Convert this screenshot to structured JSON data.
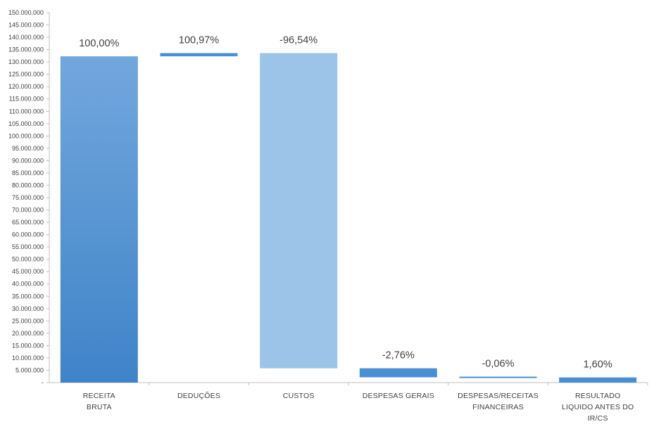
{
  "chart_data": {
    "type": "bar",
    "title": "",
    "xlabel": "",
    "ylabel": "",
    "ylim": [
      0,
      150000000
    ],
    "y_tick_step": 5000000,
    "y_tick_labels": [
      "-",
      "5.000.000",
      "10.000.000",
      "15.000.000",
      "20.000.000",
      "25.000.000",
      "30.000.000",
      "35.000.000",
      "40.000.000",
      "45.000.000",
      "50.000.000",
      "55.000.000",
      "60.000.000",
      "65.000.000",
      "70.000.000",
      "75.000.000",
      "80.000.000",
      "85.000.000",
      "90.000.000",
      "95.000.000",
      "100.000.000",
      "105.000.000",
      "110.000.000",
      "115.000.000",
      "120.000.000",
      "125.000.000",
      "130.000.000",
      "135.000.000",
      "140.000.000",
      "145.000.000",
      "150.000.000"
    ],
    "grid": false,
    "legend": "none",
    "categories": [
      [
        "RECEITA",
        "BRUTA"
      ],
      [
        "DEDUÇÕES"
      ],
      [
        "CUSTOS"
      ],
      [
        "DESPESAS GERAIS"
      ],
      [
        "DESPESAS/RECEITAS",
        "FINANCEIRAS"
      ],
      [
        "RESULTADO",
        "LIQUIDO ANTES DO",
        "IR/CS"
      ]
    ],
    "bars": [
      {
        "start": 0,
        "end": 132300000,
        "label": "100,00%",
        "color": "#5f9fdc"
      },
      {
        "start": 132300000,
        "end": 133600000,
        "label": "100,97%",
        "color": "#4a8fd6"
      },
      {
        "start": 5800000,
        "end": 133600000,
        "label": "-96,54%",
        "color": "#9cc4e9"
      },
      {
        "start": 2150000,
        "end": 5800000,
        "label": "-2,76%",
        "color": "#4a8fd6"
      },
      {
        "start": 2080000,
        "end": 2150000,
        "label": "-0,06%",
        "color": "#4a8fd6"
      },
      {
        "start": 0,
        "end": 2100000,
        "label": "1,60%",
        "color": "#4a8fd6"
      }
    ]
  }
}
